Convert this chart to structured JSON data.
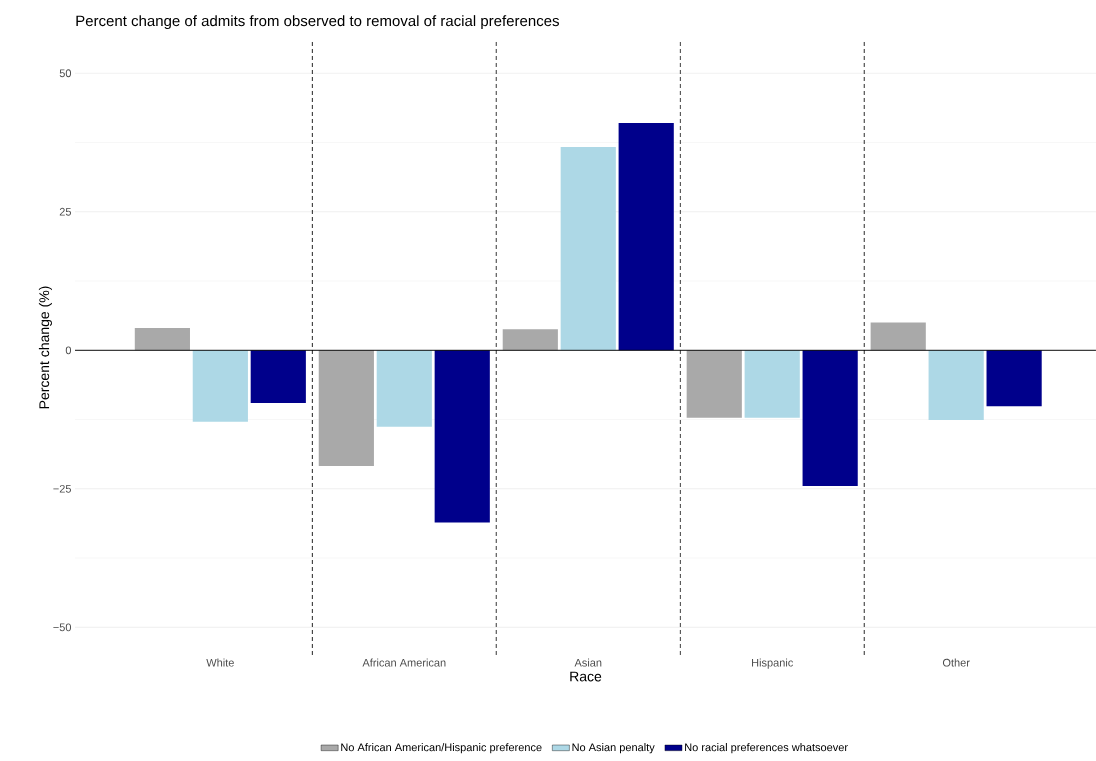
{
  "chart_data": {
    "type": "bar",
    "title": "Percent change of admits from observed to removal of racial preferences",
    "xlabel": "Race",
    "ylabel": "Percent change (%)",
    "categories": [
      "White",
      "African American",
      "Asian",
      "Hispanic",
      "Other"
    ],
    "series": [
      {
        "name": "No African American/Hispanic preference",
        "color": "#a9a9a9",
        "values": [
          4.0,
          -20.9,
          3.8,
          -12.2,
          5.0
        ]
      },
      {
        "name": "No Asian penalty",
        "color": "#add8e6",
        "values": [
          -12.9,
          -13.8,
          36.7,
          -12.2,
          -12.6
        ]
      },
      {
        "name": "No racial preferences whatsoever",
        "color": "#00008b",
        "values": [
          -9.5,
          -31.1,
          41.0,
          -24.5,
          -10.1
        ]
      }
    ],
    "ylim": [
      -55,
      56
    ],
    "yticks": [
      {
        "value": -50,
        "label": "−50"
      },
      {
        "value": -25,
        "label": "−25"
      },
      0,
      25,
      50
    ],
    "ref_lines": [
      {
        "axis": "y",
        "value": 0,
        "color": "#000000",
        "line_style": "solid"
      }
    ],
    "grid": "y",
    "legend": "bottom"
  }
}
